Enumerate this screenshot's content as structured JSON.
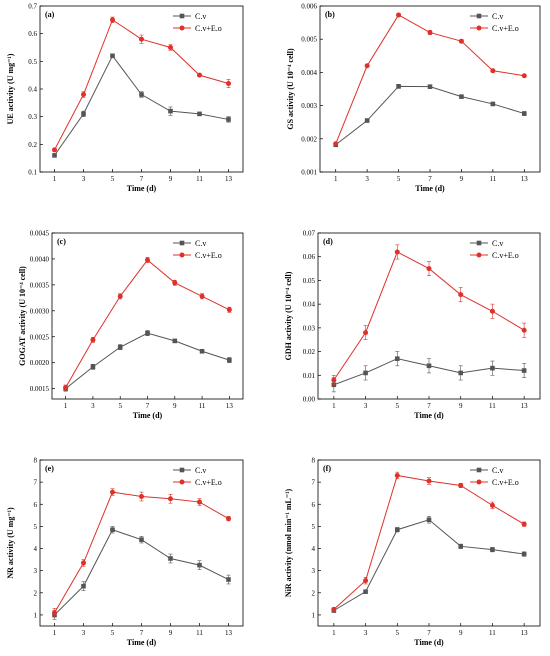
{
  "colors": {
    "cv": "#555555",
    "cveo": "#e0302a",
    "axis": "#000000"
  },
  "legend": [
    "C.v",
    "C.v+E.o"
  ],
  "chart_data": [
    {
      "type": "line",
      "panel_label": "(a)",
      "xlabel": "Time (d)",
      "ylabel": "UE activity (U mg⁻¹)",
      "x": [
        1,
        3,
        5,
        7,
        9,
        11,
        13
      ],
      "xlim": [
        0,
        14
      ],
      "ylim": [
        0.1,
        0.7
      ],
      "yticks": [
        "0.1",
        "0.2",
        "0.3",
        "0.4",
        "0.5",
        "0.6",
        "0.7"
      ],
      "series": [
        {
          "name": "C.v",
          "values": [
            0.16,
            0.31,
            0.52,
            0.38,
            0.32,
            0.31,
            0.29
          ],
          "errors": [
            0.005,
            0.01,
            0.005,
            0.01,
            0.015,
            0.005,
            0.01
          ]
        },
        {
          "name": "C.v+E.o",
          "values": [
            0.18,
            0.38,
            0.65,
            0.58,
            0.55,
            0.45,
            0.42
          ],
          "errors": [
            0.005,
            0.01,
            0.01,
            0.015,
            0.01,
            0.005,
            0.015
          ]
        }
      ]
    },
    {
      "type": "line",
      "panel_label": "(b)",
      "xlabel": "Time (d)",
      "ylabel": "GS activity (U 10⁻⁴ cell)",
      "x": [
        1,
        3,
        5,
        7,
        9,
        11,
        13
      ],
      "xlim": [
        0,
        14
      ],
      "ylim": [
        0.001,
        0.006
      ],
      "yticks": [
        "0.001",
        "0.002",
        "0.003",
        "0.004",
        "0.005",
        "0.006"
      ],
      "series": [
        {
          "name": "C.v",
          "values": [
            0.00182,
            0.00255,
            0.00358,
            0.00357,
            0.00327,
            0.00305,
            0.00276
          ],
          "errors": [
            3e-05,
            5e-05,
            6e-05,
            3e-05,
            3e-05,
            3e-05,
            6e-05
          ]
        },
        {
          "name": "C.v+E.o",
          "values": [
            0.00185,
            0.0042,
            0.00573,
            0.0052,
            0.00494,
            0.00405,
            0.0039
          ],
          "errors": [
            3e-05,
            4e-05,
            5e-05,
            6e-05,
            5e-05,
            5e-05,
            3e-05
          ]
        }
      ]
    },
    {
      "type": "line",
      "panel_label": "(c)",
      "xlabel": "Time (d)",
      "ylabel": "GOGAT activity (U 10⁻⁴ cell)",
      "x": [
        1,
        3,
        5,
        7,
        9,
        11,
        13
      ],
      "xlim": [
        0,
        14
      ],
      "ylim": [
        0.0013,
        0.0045
      ],
      "yticks": [
        "0.0015",
        "0.0020",
        "0.0025",
        "0.0030",
        "0.0035",
        "0.0040",
        "0.0045"
      ],
      "series": [
        {
          "name": "C.v",
          "values": [
            0.0015,
            0.00192,
            0.0023,
            0.00257,
            0.00242,
            0.00222,
            0.00205
          ],
          "errors": [
            5e-05,
            5e-05,
            5e-05,
            5e-05,
            3e-05,
            3e-05,
            5e-05
          ]
        },
        {
          "name": "C.v+E.o",
          "values": [
            0.00152,
            0.00244,
            0.00328,
            0.00398,
            0.00354,
            0.00328,
            0.00302
          ],
          "errors": [
            5e-05,
            5e-05,
            5e-05,
            5e-05,
            5e-05,
            5e-05,
            5e-05
          ]
        }
      ]
    },
    {
      "type": "line",
      "panel_label": "(d)",
      "xlabel": "Time (d)",
      "ylabel": "GDH activity (U 10⁻⁴ cell)",
      "x": [
        1,
        3,
        5,
        7,
        9,
        11,
        13
      ],
      "xlim": [
        0,
        14
      ],
      "ylim": [
        0.0,
        0.07
      ],
      "yticks": [
        "0.00",
        "0.01",
        "0.02",
        "0.03",
        "0.04",
        "0.05",
        "0.06",
        "0.07"
      ],
      "series": [
        {
          "name": "C.v",
          "values": [
            0.006,
            0.011,
            0.017,
            0.014,
            0.011,
            0.013,
            0.012
          ],
          "errors": [
            0.003,
            0.003,
            0.003,
            0.003,
            0.003,
            0.003,
            0.003
          ]
        },
        {
          "name": "C.v+E.o",
          "values": [
            0.008,
            0.028,
            0.062,
            0.055,
            0.044,
            0.037,
            0.029
          ],
          "errors": [
            0.002,
            0.003,
            0.003,
            0.003,
            0.003,
            0.003,
            0.003
          ]
        }
      ]
    },
    {
      "type": "line",
      "panel_label": "(e)",
      "xlabel": "Time (d)",
      "ylabel": "NR activity (U mg⁻¹)",
      "x": [
        1,
        3,
        5,
        7,
        9,
        11,
        13
      ],
      "xlim": [
        0,
        14
      ],
      "ylim": [
        0.5,
        8
      ],
      "yticks": [
        "1",
        "2",
        "3",
        "4",
        "5",
        "6",
        "7",
        "8"
      ],
      "series": [
        {
          "name": "C.v",
          "values": [
            1.0,
            2.3,
            4.85,
            4.4,
            3.55,
            3.25,
            2.6
          ],
          "errors": [
            0.2,
            0.2,
            0.15,
            0.15,
            0.2,
            0.2,
            0.2
          ]
        },
        {
          "name": "C.v+E.o",
          "values": [
            1.1,
            3.35,
            6.55,
            6.35,
            6.25,
            6.1,
            5.35
          ],
          "errors": [
            0.2,
            0.15,
            0.15,
            0.2,
            0.2,
            0.15,
            0.1
          ]
        }
      ]
    },
    {
      "type": "line",
      "panel_label": "(f)",
      "xlabel": "Time (d)",
      "ylabel": "NiR activity (nmol min⁻¹ mL⁻¹)",
      "x": [
        1,
        3,
        5,
        7,
        9,
        11,
        13
      ],
      "xlim": [
        0,
        14
      ],
      "ylim": [
        0.5,
        8
      ],
      "yticks": [
        "1",
        "2",
        "3",
        "4",
        "5",
        "6",
        "7",
        "8"
      ],
      "series": [
        {
          "name": "C.v",
          "values": [
            1.2,
            2.05,
            4.85,
            5.3,
            4.1,
            3.95,
            3.75
          ],
          "errors": [
            0.08,
            0.08,
            0.1,
            0.15,
            0.1,
            0.1,
            0.1
          ]
        },
        {
          "name": "C.v+E.o",
          "values": [
            1.25,
            2.55,
            7.3,
            7.05,
            6.85,
            5.95,
            5.1
          ],
          "errors": [
            0.08,
            0.15,
            0.15,
            0.15,
            0.1,
            0.15,
            0.1
          ]
        }
      ]
    }
  ]
}
